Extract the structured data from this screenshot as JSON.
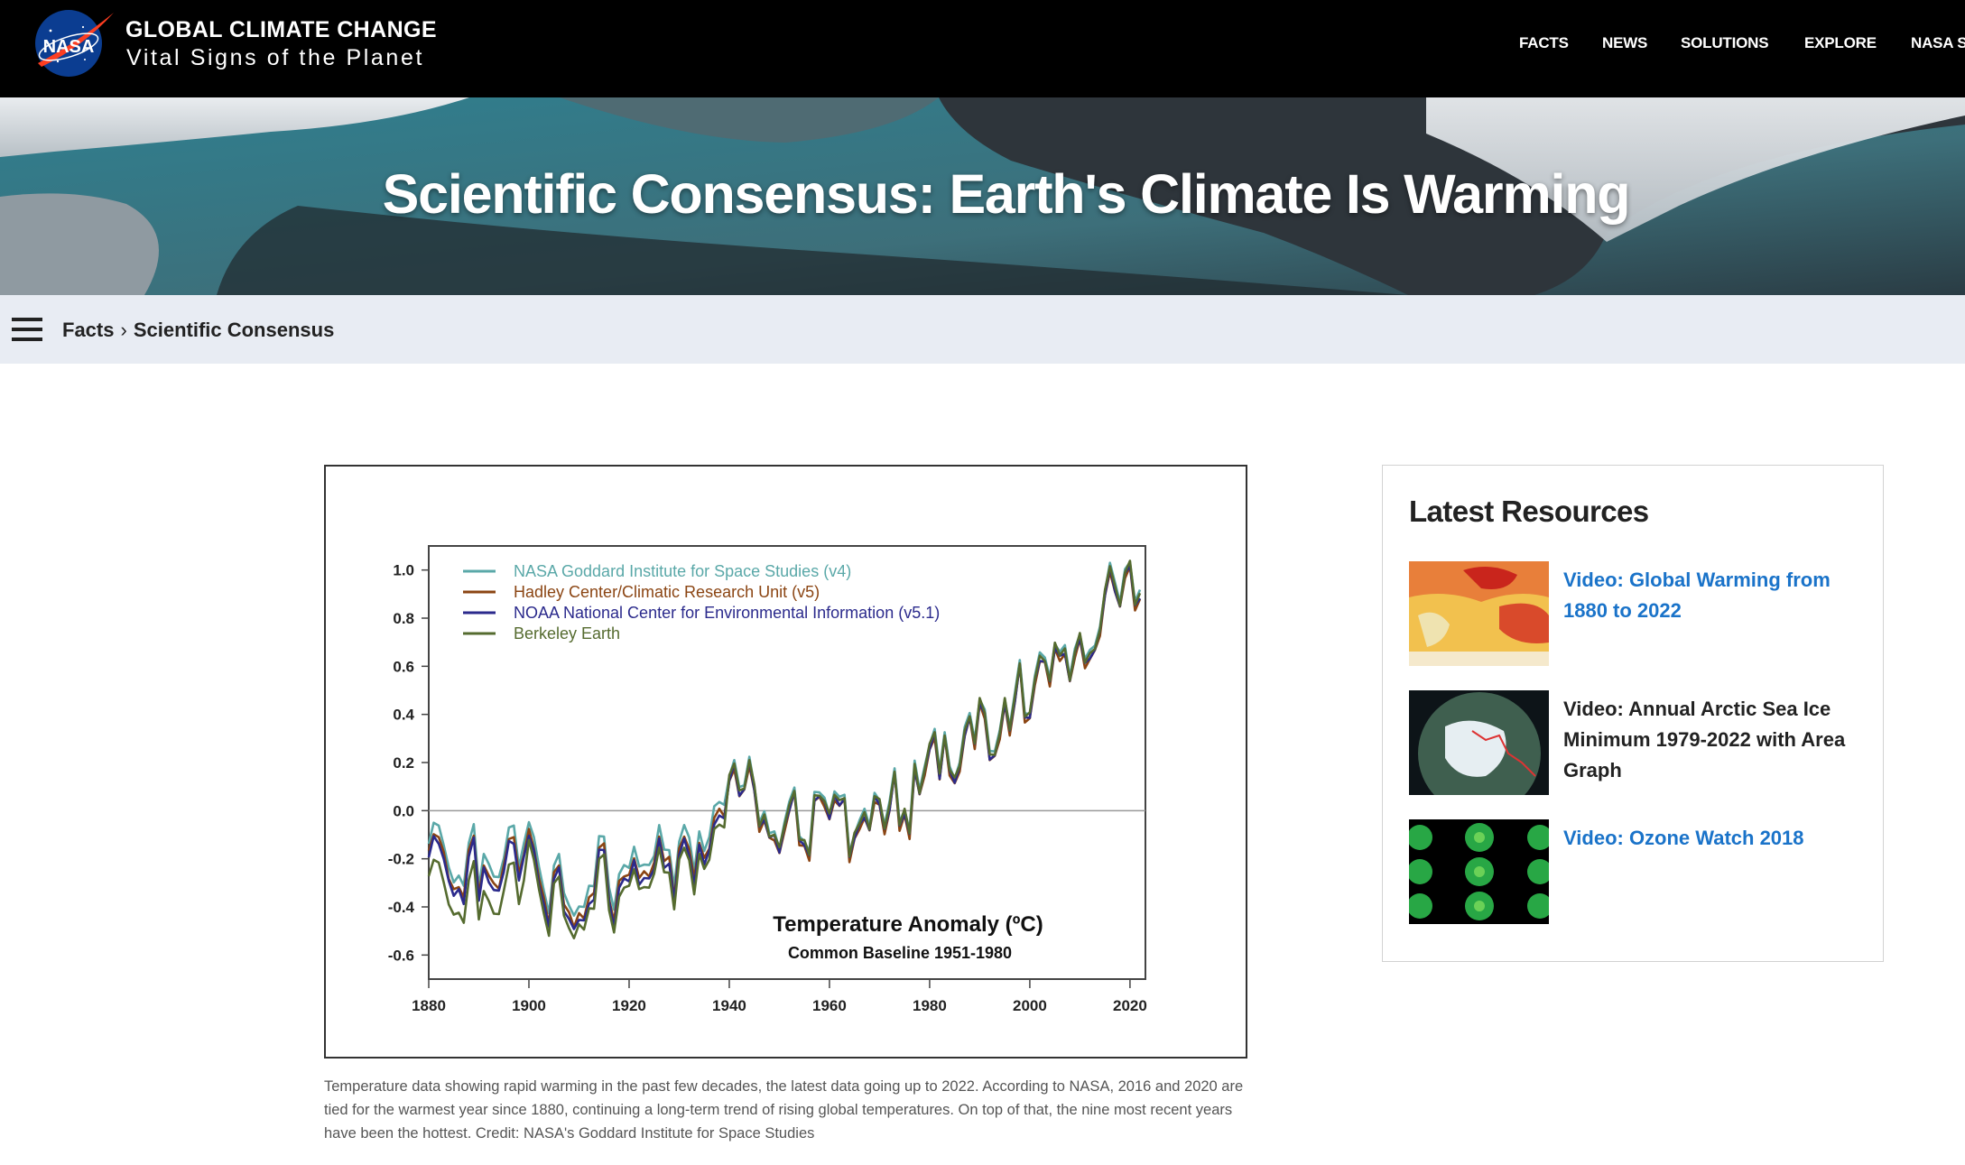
{
  "header": {
    "brand_title": "GLOBAL CLIMATE CHANGE",
    "brand_subtitle": "Vital Signs of the Planet",
    "logo_text": "NASA",
    "nav": [
      "FACTS",
      "NEWS",
      "SOLUTIONS",
      "EXPLORE",
      "NASA S"
    ]
  },
  "hero": {
    "title": "Scientific Consensus: Earth's Climate Is Warming"
  },
  "breadcrumb": {
    "items": [
      "Facts",
      "Scientific Consensus"
    ],
    "separator": "›"
  },
  "figure": {
    "caption": "Temperature data showing rapid warming in the past few decades, the latest data going up to 2022. According to NASA, 2016 and 2020 are tied for the warmest year since 1880, continuing a long-term trend of rising global temperatures. On top of that, the nine most recent years have been the hottest. Credit: NASA's Goddard Institute for Space Studies"
  },
  "chart_data": {
    "type": "line",
    "title": "Temperature Anomaly (ºC)",
    "subtitle": "Common Baseline 1951-1980",
    "xlabel": "",
    "ylabel": "",
    "xlim": [
      1880,
      2022
    ],
    "ylim": [
      -0.7,
      1.1
    ],
    "x_ticks": [
      1880,
      1900,
      1920,
      1940,
      1960,
      1980,
      2000,
      2020
    ],
    "y_ticks": [
      "1.0",
      "0.8",
      "0.6",
      "0.4",
      "0.2",
      "0.0",
      "-0.2",
      "-0.4",
      "-0.6"
    ],
    "y_tick_values": [
      1.0,
      0.8,
      0.6,
      0.4,
      0.2,
      0.0,
      -0.2,
      -0.4,
      -0.6
    ],
    "zero_line": true,
    "legend_position": "top-left",
    "series": [
      {
        "name": "NASA Goddard Institute for Space Studies (v4)",
        "color": "#5aa8a8"
      },
      {
        "name": "Hadley Center/Climatic Research Unit (v5)",
        "color": "#8b4513"
      },
      {
        "name": "NOAA National Center for Environmental Information (v5.1)",
        "color": "#2b2a8c"
      },
      {
        "name": "Berkeley Earth",
        "color": "#556b2f"
      }
    ],
    "x": [
      1880,
      1881,
      1882,
      1883,
      1884,
      1885,
      1886,
      1887,
      1888,
      1889,
      1890,
      1891,
      1892,
      1893,
      1894,
      1895,
      1896,
      1897,
      1898,
      1899,
      1900,
      1901,
      1902,
      1903,
      1904,
      1905,
      1906,
      1907,
      1908,
      1909,
      1910,
      1911,
      1912,
      1913,
      1914,
      1915,
      1916,
      1917,
      1918,
      1919,
      1920,
      1921,
      1922,
      1923,
      1924,
      1925,
      1926,
      1927,
      1928,
      1929,
      1930,
      1931,
      1932,
      1933,
      1934,
      1935,
      1936,
      1937,
      1938,
      1939,
      1940,
      1941,
      1942,
      1943,
      1944,
      1945,
      1946,
      1947,
      1948,
      1949,
      1950,
      1951,
      1952,
      1953,
      1954,
      1955,
      1956,
      1957,
      1958,
      1959,
      1960,
      1961,
      1962,
      1963,
      1964,
      1965,
      1966,
      1967,
      1968,
      1969,
      1970,
      1971,
      1972,
      1973,
      1974,
      1975,
      1976,
      1977,
      1978,
      1979,
      1980,
      1981,
      1982,
      1983,
      1984,
      1985,
      1986,
      1987,
      1988,
      1989,
      1990,
      1991,
      1992,
      1993,
      1994,
      1995,
      1996,
      1997,
      1998,
      1999,
      2000,
      2001,
      2002,
      2003,
      2004,
      2005,
      2006,
      2007,
      2008,
      2009,
      2010,
      2011,
      2012,
      2013,
      2014,
      2015,
      2016,
      2017,
      2018,
      2019,
      2020,
      2021,
      2022
    ],
    "anomaly": [
      -0.17,
      -0.09,
      -0.11,
      -0.18,
      -0.28,
      -0.33,
      -0.31,
      -0.36,
      -0.17,
      -0.1,
      -0.35,
      -0.22,
      -0.27,
      -0.31,
      -0.32,
      -0.23,
      -0.11,
      -0.11,
      -0.27,
      -0.18,
      -0.08,
      -0.15,
      -0.28,
      -0.37,
      -0.47,
      -0.26,
      -0.22,
      -0.39,
      -0.43,
      -0.48,
      -0.43,
      -0.44,
      -0.36,
      -0.35,
      -0.15,
      -0.14,
      -0.36,
      -0.46,
      -0.3,
      -0.27,
      -0.27,
      -0.19,
      -0.28,
      -0.26,
      -0.27,
      -0.22,
      -0.1,
      -0.21,
      -0.2,
      -0.36,
      -0.16,
      -0.1,
      -0.16,
      -0.29,
      -0.13,
      -0.2,
      -0.15,
      -0.03,
      -0.0,
      -0.02,
      0.13,
      0.19,
      0.07,
      0.09,
      0.2,
      0.09,
      -0.07,
      -0.03,
      -0.11,
      -0.11,
      -0.17,
      -0.07,
      0.01,
      0.08,
      -0.13,
      -0.14,
      -0.19,
      0.05,
      0.06,
      0.03,
      -0.03,
      0.06,
      0.03,
      0.05,
      -0.2,
      -0.11,
      -0.06,
      -0.02,
      -0.08,
      0.05,
      0.03,
      -0.08,
      0.01,
      0.16,
      -0.07,
      -0.01,
      -0.1,
      0.18,
      0.07,
      0.16,
      0.26,
      0.32,
      0.14,
      0.31,
      0.16,
      0.12,
      0.18,
      0.32,
      0.39,
      0.27,
      0.45,
      0.4,
      0.22,
      0.23,
      0.31,
      0.45,
      0.33,
      0.46,
      0.61,
      0.38,
      0.39,
      0.54,
      0.63,
      0.62,
      0.53,
      0.68,
      0.64,
      0.66,
      0.54,
      0.65,
      0.72,
      0.61,
      0.64,
      0.67,
      0.74,
      0.9,
      1.01,
      0.92,
      0.85,
      0.98,
      1.02,
      0.85,
      0.89
    ]
  },
  "sidebar": {
    "title": "Latest Resources",
    "resources": [
      {
        "label": "Video: Global Warming from 1880 to 2022",
        "style": "link"
      },
      {
        "label": "Video: Annual Arctic Sea Ice Minimum 1979-2022 with Area Graph",
        "style": "dark"
      },
      {
        "label": "Video: Ozone Watch 2018",
        "style": "link"
      }
    ]
  },
  "colors": {
    "accent_link": "#1a73c9",
    "breadcrumb_bg": "#e8ecf3",
    "nav_bg": "#000000"
  }
}
